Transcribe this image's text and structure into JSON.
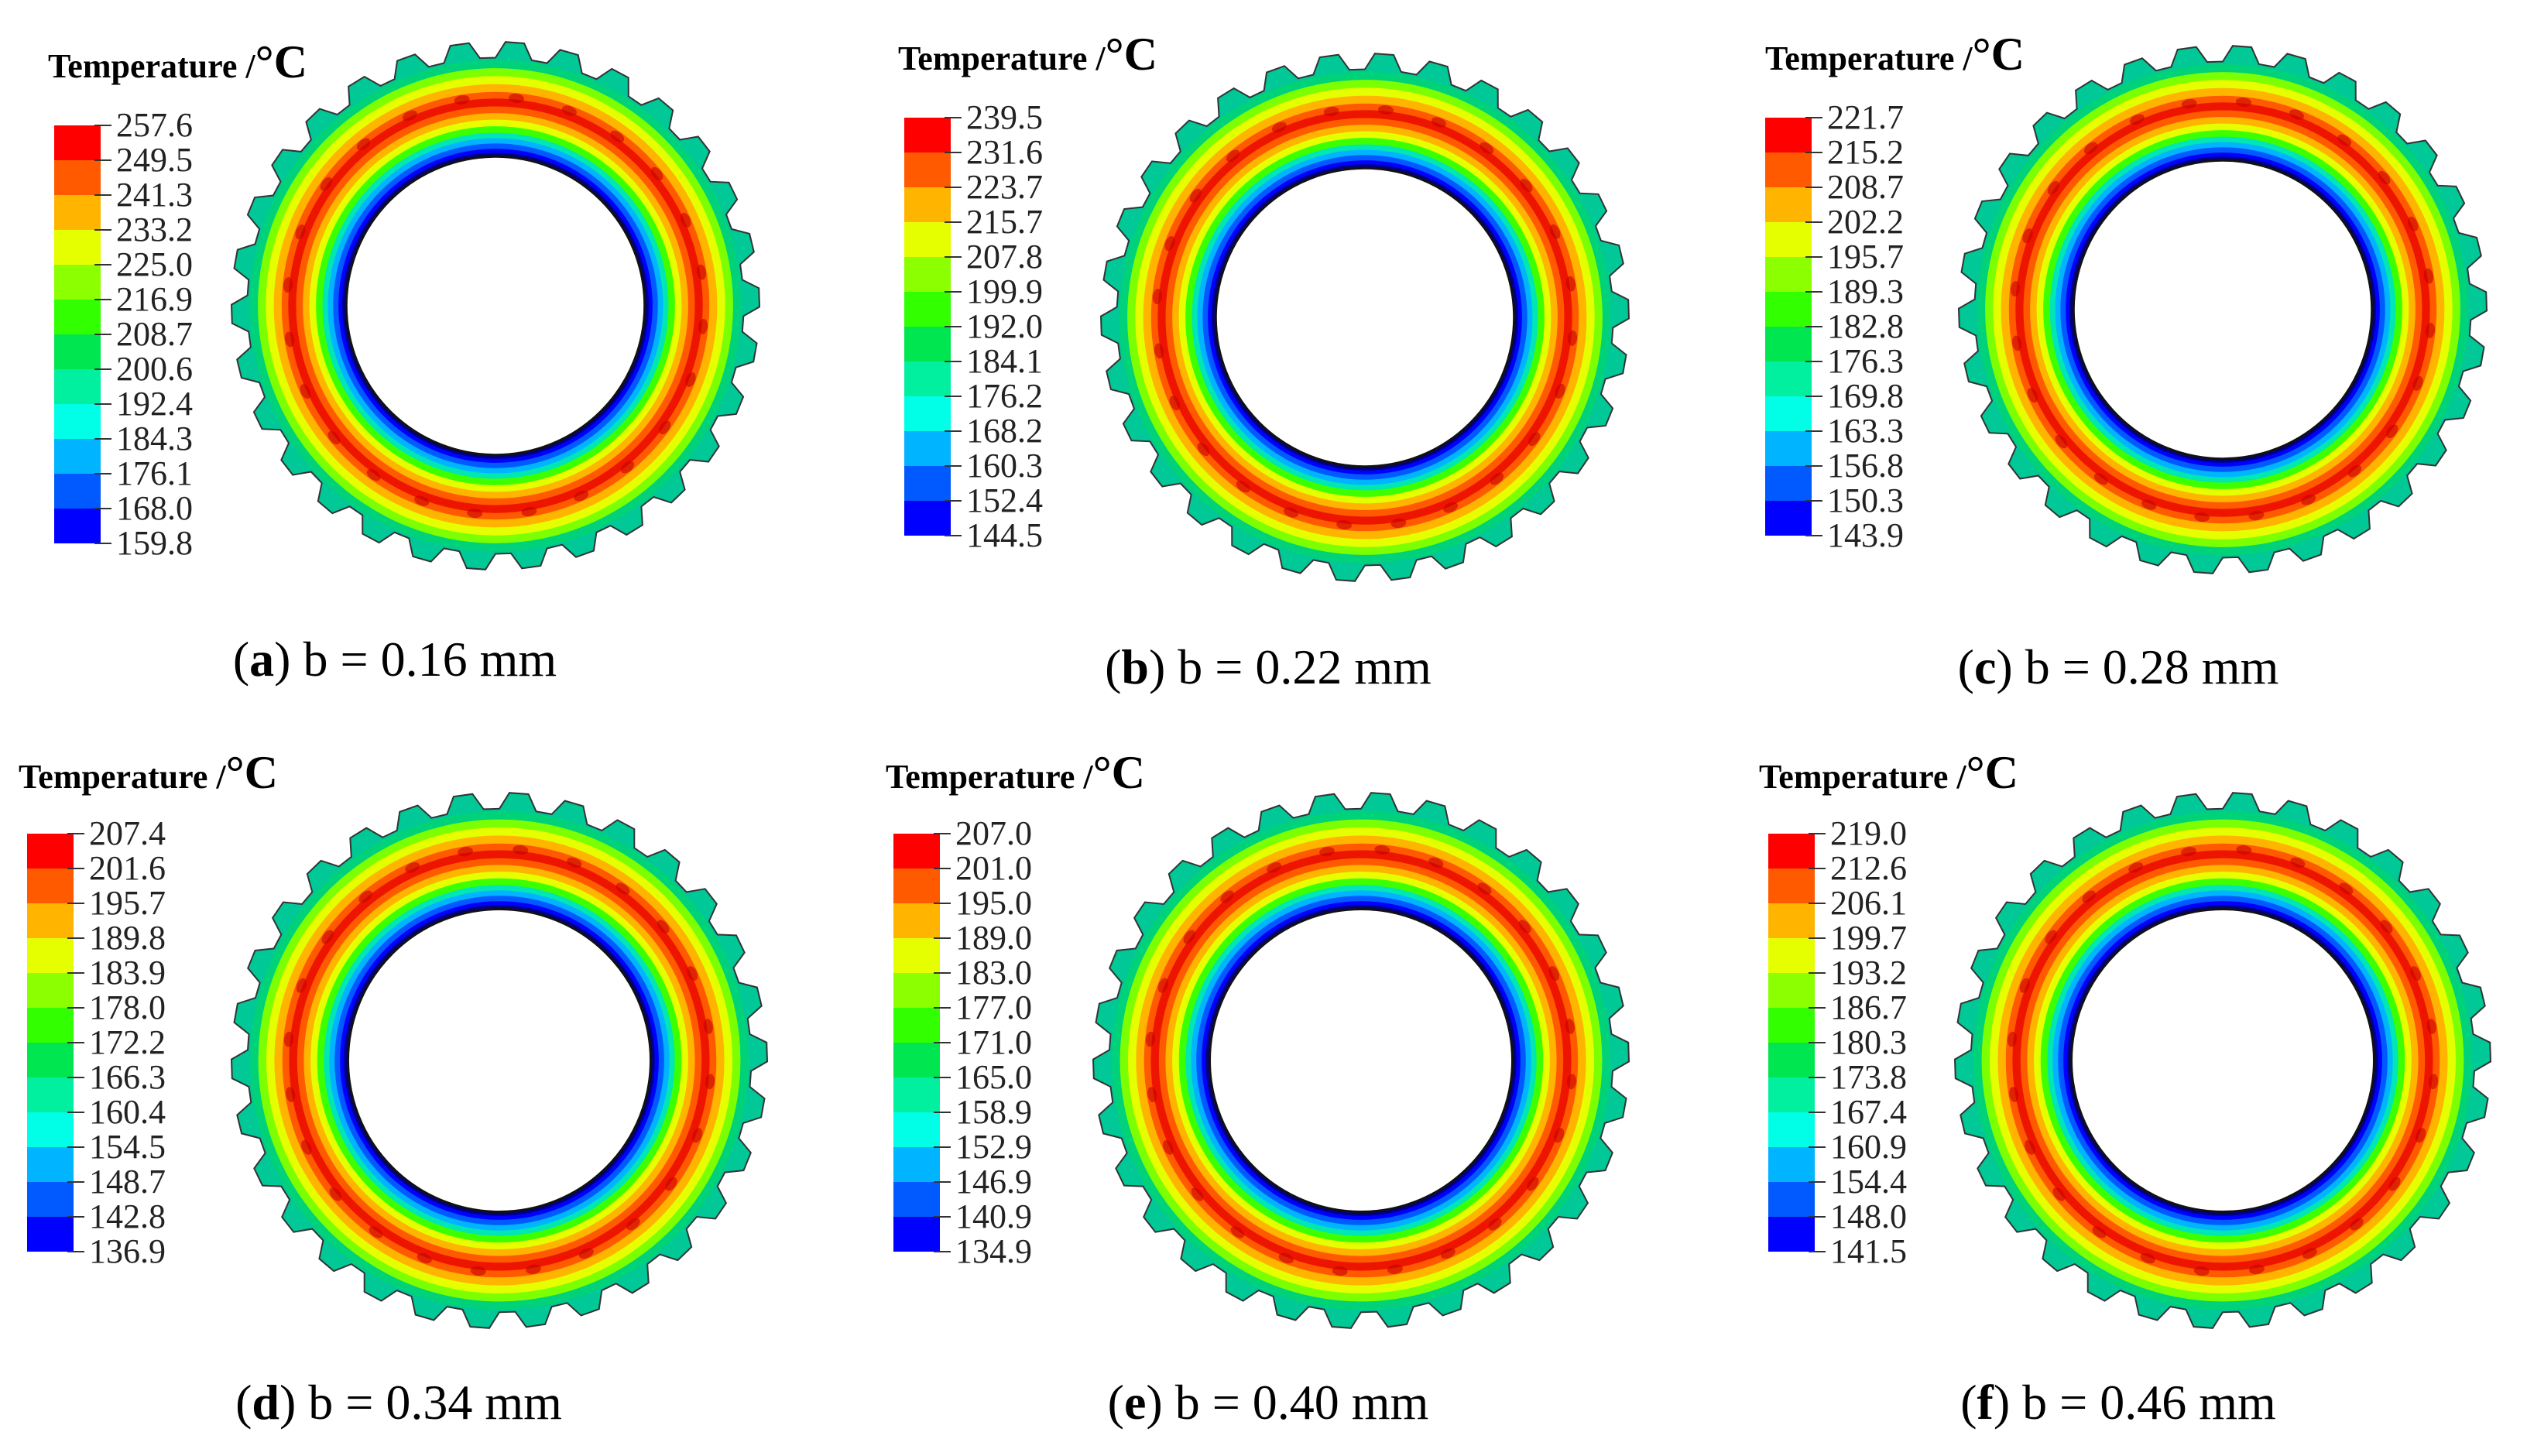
{
  "colors": [
    "#ff0000",
    "#ff5a00",
    "#ffb400",
    "#e6ff00",
    "#8cff00",
    "#32ff00",
    "#00e650",
    "#00f0a0",
    "#00ffe6",
    "#00b4ff",
    "#005aff",
    "#0000ff"
  ],
  "panels": [
    {
      "title": "Temperature /",
      "unit": "°C",
      "ticks": [
        "257.6",
        "249.5",
        "241.3",
        "233.2",
        "225.0",
        "216.9",
        "208.7",
        "200.6",
        "192.4",
        "184.3",
        "176.1",
        "168.0",
        "159.8"
      ],
      "caption_letter": "a",
      "caption_text": " b = 0.16 mm"
    },
    {
      "title": "Temperature /",
      "unit": "°C",
      "ticks": [
        "239.5",
        "231.6",
        "223.7",
        "215.7",
        "207.8",
        "199.9",
        "192.0",
        "184.1",
        "176.2",
        "168.2",
        "160.3",
        "152.4",
        "144.5"
      ],
      "caption_letter": "b",
      "caption_text": " b = 0.22 mm"
    },
    {
      "title": "Temperature /",
      "unit": "°C",
      "ticks": [
        "221.7",
        "215.2",
        "208.7",
        "202.2",
        "195.7",
        "189.3",
        "182.8",
        "176.3",
        "169.8",
        "163.3",
        "156.8",
        "150.3",
        "143.9"
      ],
      "caption_letter": "c",
      "caption_text": " b = 0.28 mm"
    },
    {
      "title": "Temperature /",
      "unit": "°C",
      "ticks": [
        "207.4",
        "201.6",
        "195.7",
        "189.8",
        "183.9",
        "178.0",
        "172.2",
        "166.3",
        "160.4",
        "154.5",
        "148.7",
        "142.8",
        "136.9"
      ],
      "caption_letter": "d",
      "caption_text": " b = 0.34 mm"
    },
    {
      "title": "Temperature /",
      "unit": "°C",
      "ticks": [
        "207.0",
        "201.0",
        "195.0",
        "189.0",
        "183.0",
        "177.0",
        "171.0",
        "165.0",
        "158.9",
        "152.9",
        "146.9",
        "140.9",
        "134.9"
      ],
      "caption_letter": "e",
      "caption_text": " b = 0.40 mm"
    },
    {
      "title": "Temperature /",
      "unit": "°C",
      "ticks": [
        "219.0",
        "212.6",
        "206.1",
        "199.7",
        "193.2",
        "186.7",
        "180.3",
        "173.8",
        "167.4",
        "160.9",
        "154.4",
        "148.0",
        "141.5"
      ],
      "caption_letter": "f",
      "caption_text": " b = 0.46 mm"
    }
  ]
}
